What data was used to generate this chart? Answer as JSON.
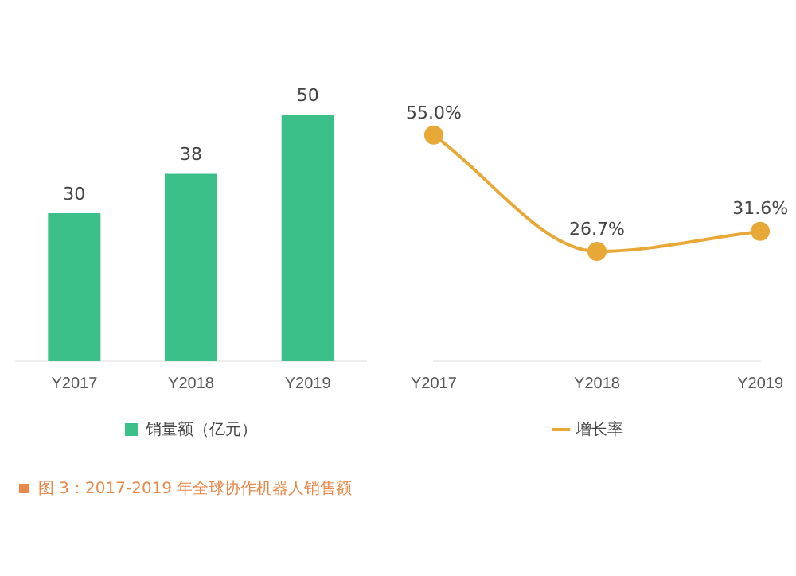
{
  "chart_data": [
    {
      "type": "bar",
      "categories": [
        "Y2017",
        "Y2018",
        "Y2019"
      ],
      "series": [
        {
          "name": "销量额（亿元）",
          "color": "#3cc08a",
          "values": [
            30,
            38,
            50
          ]
        }
      ],
      "data_labels": true,
      "legend": "bottom",
      "grid": false,
      "annotations": [
        "图 3：2017-2019 年全球协作机器人销售额"
      ]
    },
    {
      "type": "line",
      "categories": [
        "Y2017",
        "Y2018",
        "Y2019"
      ],
      "series": [
        {
          "name": "增长率",
          "color": "#e8a838",
          "values": [
            55.0,
            26.7,
            31.6
          ],
          "value_labels": [
            "55.0%",
            "26.7%",
            "31.6%"
          ]
        }
      ],
      "marker": "circle",
      "legend": "bottom",
      "grid": false
    }
  ]
}
